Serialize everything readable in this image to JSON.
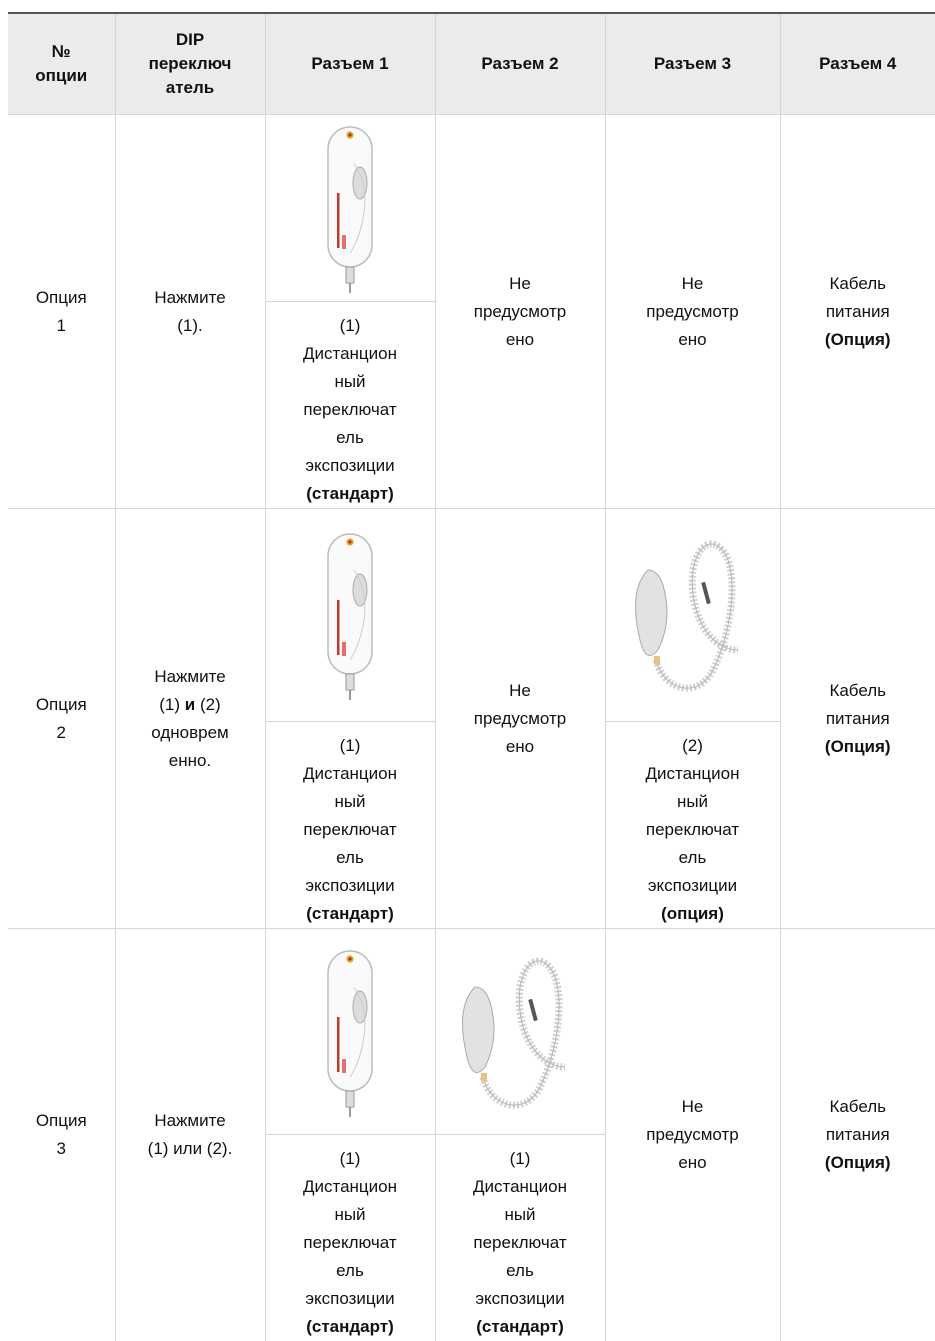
{
  "table": {
    "header": [
      [
        "№",
        "опции"
      ],
      [
        "DIP",
        "переключ",
        "атель"
      ],
      [
        "Разъем 1"
      ],
      [
        "Разъем 2"
      ],
      [
        "Разъем 3"
      ],
      [
        "Разъем 4"
      ]
    ],
    "rows": [
      [
        [
          "Опция",
          "1"
        ],
        [
          "Нажмите",
          "(1)."
        ],
        [
          "(1)",
          "Дистанцион",
          "ный",
          "переключат",
          "ель",
          "экспозиции",
          {
            "bold": "(стандарт)"
          }
        ],
        [
          "Не",
          "предусмотр",
          "ено"
        ],
        [
          "Не",
          "предусмотр",
          "ено"
        ],
        [
          "Кабель",
          "питания",
          {
            "bold": "(Опция)"
          }
        ]
      ],
      [
        [
          "Опция",
          "2"
        ],
        [
          "Нажмите",
          [
            "(1) ",
            {
              "bold": "и"
            },
            " (2)"
          ],
          "одноврем",
          "енно."
        ],
        [
          "(1)",
          "Дистанцион",
          "ный",
          "переключат",
          "ель",
          "экспозиции",
          {
            "bold": "(стандарт)"
          }
        ],
        [
          "Не",
          "предусмотр",
          "ено"
        ],
        [
          "(2)",
          "Дистанцион",
          "ный",
          "переключат",
          "ель",
          "экспозиции",
          {
            "bold": "(опция)"
          }
        ],
        [
          "Кабель",
          "питания",
          {
            "bold": "(Опция)"
          }
        ]
      ],
      [
        [
          "Опция",
          "3"
        ],
        [
          "Нажмите",
          "(1) или (2)."
        ],
        [
          "(1)",
          "Дистанцион",
          "ный",
          "переключат",
          "ель",
          "экспозиции",
          {
            "bold": "(стандарт)"
          }
        ],
        [
          "(1)",
          "Дистанцион",
          "ный",
          "переключат",
          "ель",
          "экспозиции",
          {
            "bold": "(стандарт)"
          }
        ],
        [
          "Не",
          "предусмотр",
          "ено"
        ],
        [
          "Кабель",
          "питания",
          {
            "bold": "(Опция)"
          }
        ]
      ]
    ]
  }
}
